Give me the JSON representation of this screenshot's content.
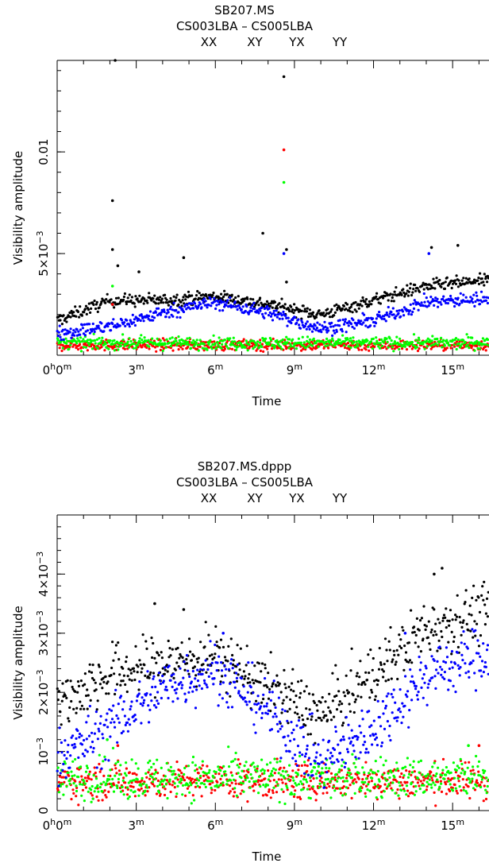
{
  "colors": {
    "XX": "#000000",
    "XY": "#ff0000",
    "YX": "#00ff00",
    "YY": "#0000ff"
  },
  "chart_data": [
    {
      "type": "scatter",
      "title": "SB207.MS",
      "subtitle": "CS003LBA  –  CS005LBA",
      "legend": [
        "XX",
        "XY",
        "YX",
        "YY"
      ],
      "xlabel": "Time",
      "ylabel": "Visibility amplitude",
      "xlim": [
        0,
        16.5
      ],
      "ylim": [
        0,
        0.0145
      ],
      "x_ticks": [
        {
          "v": 0,
          "major": "0",
          "minor": "h",
          "major2": "0",
          "minor2": "m"
        },
        {
          "v": 3,
          "major": "3",
          "minor": "m"
        },
        {
          "v": 6,
          "major": "6",
          "minor": "m"
        },
        {
          "v": 9,
          "major": "9",
          "minor": "m"
        },
        {
          "v": 12,
          "major": "12",
          "minor": "m"
        },
        {
          "v": 15,
          "major": "15",
          "minor": "m"
        }
      ],
      "y_ticks": [
        {
          "v": 0.005,
          "label": "5×10",
          "sup": "−3"
        },
        {
          "v": 0.01,
          "label": "0.01",
          "sup": ""
        }
      ],
      "series": [
        {
          "name": "XX",
          "trend": [
            [
              0,
              0.0017
            ],
            [
              2,
              0.0027
            ],
            [
              4,
              0.0027
            ],
            [
              6,
              0.0029
            ],
            [
              8,
              0.0025
            ],
            [
              10,
              0.002
            ],
            [
              12,
              0.0027
            ],
            [
              14,
              0.0034
            ],
            [
              16.5,
              0.0037
            ]
          ],
          "spread": 0.00028,
          "outliers": [
            [
              2.2,
              0.0145
            ],
            [
              8.6,
              0.0137
            ],
            [
              2.1,
              0.0076
            ],
            [
              7.8,
              0.006
            ],
            [
              8.7,
              0.0052
            ],
            [
              2.1,
              0.0052
            ],
            [
              14.2,
              0.0053
            ],
            [
              15.2,
              0.0054
            ],
            [
              4.8,
              0.0048
            ],
            [
              2.3,
              0.0044
            ],
            [
              3.1,
              0.0041
            ],
            [
              8.7,
              0.0036
            ]
          ]
        },
        {
          "name": "XY",
          "trend": [
            [
              0,
              0.0005
            ],
            [
              16.5,
              0.0005
            ]
          ],
          "spread": 0.00025,
          "outliers": [
            [
              8.6,
              0.0101
            ],
            [
              2.1,
              0.0025
            ]
          ]
        },
        {
          "name": "YX",
          "trend": [
            [
              0,
              0.0006
            ],
            [
              16.5,
              0.0006
            ]
          ],
          "spread": 0.00028,
          "outliers": [
            [
              8.6,
              0.0085
            ],
            [
              2.1,
              0.0034
            ]
          ]
        },
        {
          "name": "YY",
          "trend": [
            [
              0,
              0.0011
            ],
            [
              2,
              0.0014
            ],
            [
              4,
              0.0021
            ],
            [
              6,
              0.0026
            ],
            [
              8,
              0.0021
            ],
            [
              10,
              0.0013
            ],
            [
              12,
              0.0017
            ],
            [
              14,
              0.0026
            ],
            [
              16.5,
              0.0028
            ]
          ],
          "spread": 0.0003,
          "outliers": [
            [
              8.6,
              0.005
            ],
            [
              14.1,
              0.005
            ]
          ]
        }
      ]
    },
    {
      "type": "scatter",
      "title": "SB207.MS.dppp",
      "subtitle": "CS003LBA  –  CS005LBA",
      "legend": [
        "XX",
        "XY",
        "YX",
        "YY"
      ],
      "xlabel": "Time",
      "ylabel": "Visibility amplitude",
      "xlim": [
        0,
        16.5
      ],
      "ylim": [
        0,
        0.005
      ],
      "x_ticks": [
        {
          "v": 0,
          "major": "0",
          "minor": "h",
          "major2": "0",
          "minor2": "m"
        },
        {
          "v": 3,
          "major": "3",
          "minor": "m"
        },
        {
          "v": 6,
          "major": "6",
          "minor": "m"
        },
        {
          "v": 9,
          "major": "9",
          "minor": "m"
        },
        {
          "v": 12,
          "major": "12",
          "minor": "m"
        },
        {
          "v": 15,
          "major": "15",
          "minor": "m"
        }
      ],
      "y_ticks": [
        {
          "v": 0,
          "label": "0",
          "sup": ""
        },
        {
          "v": 0.001,
          "label": "10",
          "sup": "−3"
        },
        {
          "v": 0.002,
          "label": "2×10",
          "sup": "−3"
        },
        {
          "v": 0.003,
          "label": "3×10",
          "sup": "−3"
        },
        {
          "v": 0.004,
          "label": "4×10",
          "sup": "−3"
        }
      ],
      "series": [
        {
          "name": "XX",
          "trend": [
            [
              0,
              0.0018
            ],
            [
              2,
              0.0023
            ],
            [
              4,
              0.0025
            ],
            [
              6,
              0.0026
            ],
            [
              8,
              0.0021
            ],
            [
              10,
              0.0016
            ],
            [
              12,
              0.0023
            ],
            [
              14,
              0.0031
            ],
            [
              16.5,
              0.0034
            ]
          ],
          "spread": 0.00045,
          "outliers": [
            [
              14.6,
              0.0041
            ],
            [
              14.3,
              0.004
            ],
            [
              3.7,
              0.0035
            ],
            [
              4.8,
              0.0034
            ]
          ]
        },
        {
          "name": "XY",
          "trend": [
            [
              0,
              0.0005
            ],
            [
              16.5,
              0.0005
            ]
          ],
          "spread": 0.00028,
          "outliers": [
            [
              2.3,
              0.0011
            ],
            [
              16,
              0.0011
            ]
          ]
        },
        {
          "name": "YX",
          "trend": [
            [
              0,
              0.00055
            ],
            [
              16.5,
              0.00055
            ]
          ],
          "spread": 0.00032,
          "outliers": [
            [
              1.9,
              0.0012
            ],
            [
              15.6,
              0.0011
            ]
          ]
        },
        {
          "name": "YY",
          "trend": [
            [
              0,
              0.0009
            ],
            [
              2,
              0.0014
            ],
            [
              4,
              0.0021
            ],
            [
              6,
              0.0024
            ],
            [
              8,
              0.0017
            ],
            [
              10,
              0.0008
            ],
            [
              12,
              0.0014
            ],
            [
              14,
              0.0023
            ],
            [
              16.5,
              0.0027
            ]
          ],
          "spread": 0.00045,
          "outliers": [
            [
              6.3,
              0.003
            ],
            [
              13.2,
              0.003
            ]
          ]
        }
      ]
    }
  ]
}
